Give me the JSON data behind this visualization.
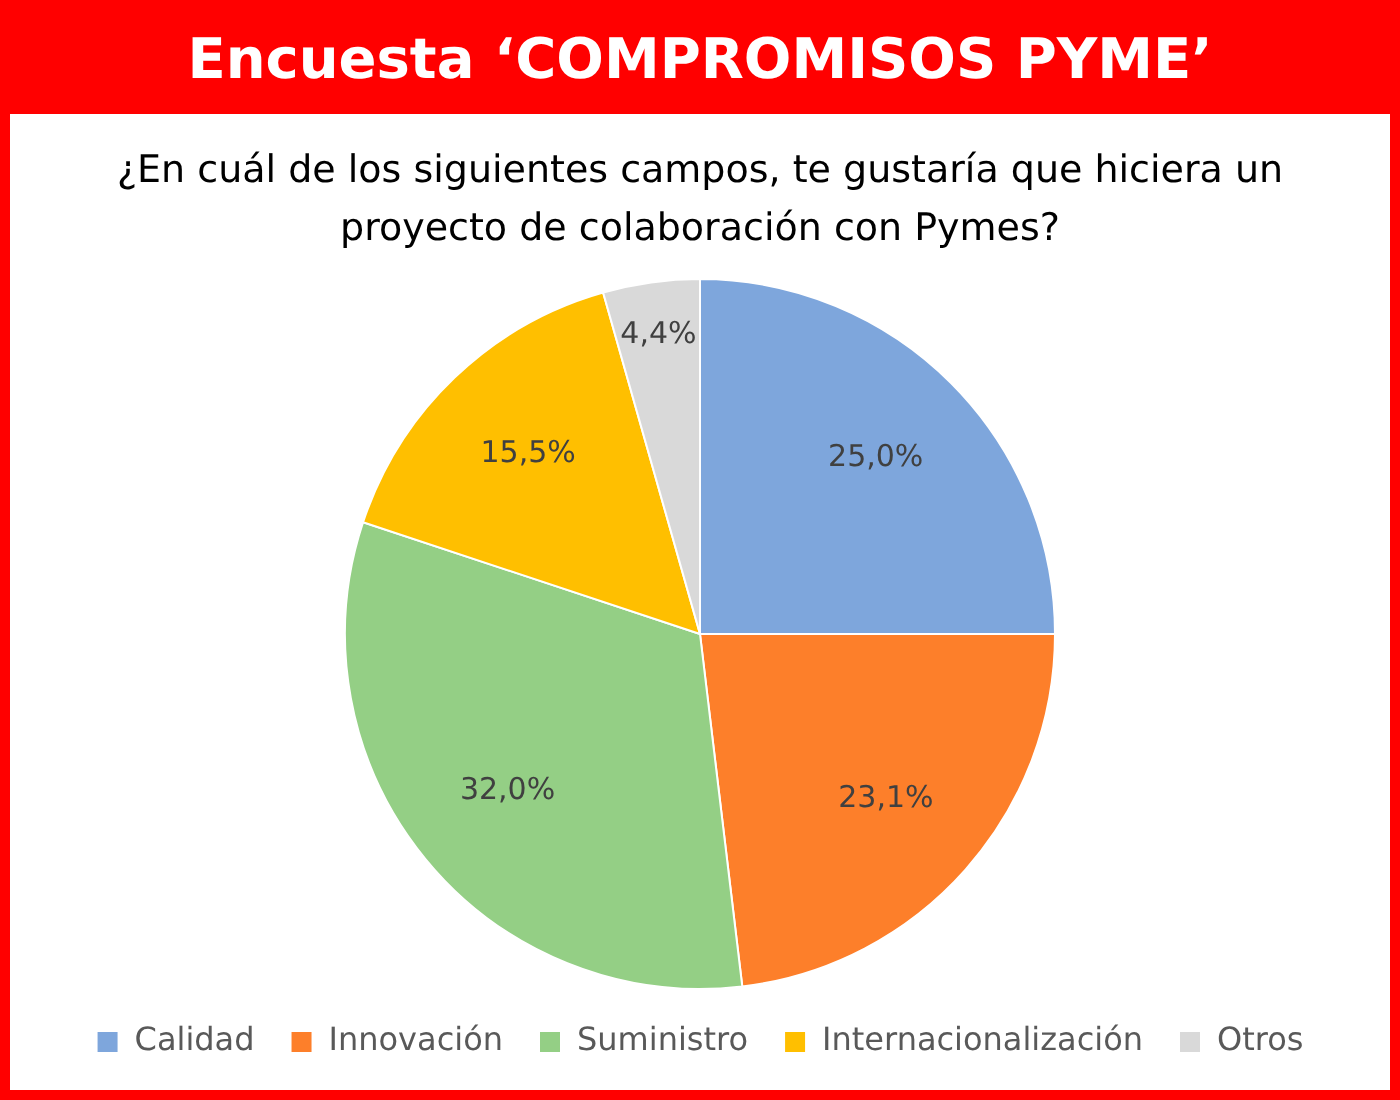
{
  "chart_data": {
    "type": "pie",
    "title": "Encuesta ‘COMPROMISOS PYME’",
    "subtitle": "¿En cuál de los siguientes campos, te gustaría que hiciera un proyecto de colaboración con Pymes?",
    "categories": [
      "Calidad",
      "Innovación",
      "Suministro",
      "Internacionalización",
      "Otros"
    ],
    "values": [
      25.0,
      23.1,
      32.0,
      15.5,
      4.4
    ],
    "value_labels": [
      "25,0%",
      "23,1%",
      "32,0%",
      "15,5%",
      "4,4%"
    ],
    "colors": [
      "#7ea6dc",
      "#fd7f2a",
      "#94cf85",
      "#ffbf00",
      "#d9d9d9"
    ],
    "legend": "bottom"
  }
}
